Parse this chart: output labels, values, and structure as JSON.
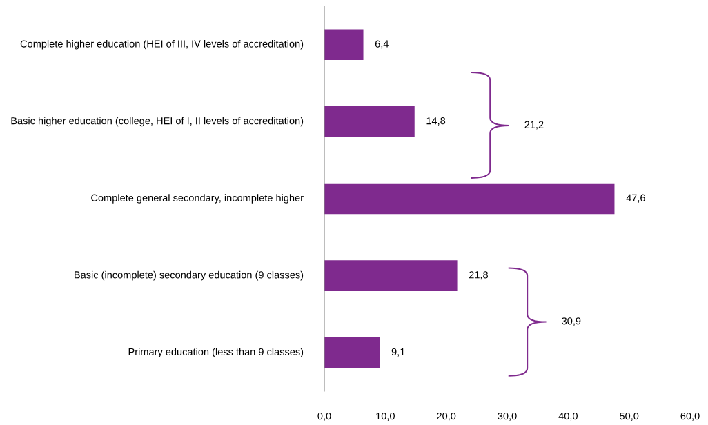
{
  "chart_data": {
    "type": "bar",
    "orientation": "horizontal",
    "categories": [
      "Complete higher education (HEI of III, IV levels of accreditation)",
      "Basic higher education (college, HEI of I, II levels of accreditation)",
      "Complete general secondary, incomplete higher",
      "Basic (incomplete) secondary education (9 classes)",
      "Primary education (less than 9 classes)"
    ],
    "values": [
      6.4,
      14.8,
      47.6,
      21.8,
      9.1
    ],
    "value_labels": [
      "6,4",
      "14,8",
      "47,6",
      "21,8",
      "9,1"
    ],
    "color": "#7f2a8e",
    "xlim": [
      0,
      60
    ],
    "xticks": [
      {
        "value": 0,
        "label": "0,0"
      },
      {
        "value": 10,
        "label": "10,0"
      },
      {
        "value": 20,
        "label": "20,0"
      },
      {
        "value": 30,
        "label": "30,0"
      },
      {
        "value": 40,
        "label": "40,0"
      },
      {
        "value": 50,
        "label": "50,0"
      },
      {
        "value": 60,
        "label": "60,0"
      }
    ],
    "annotations": [
      "21,2",
      "30,9"
    ],
    "grid": false,
    "legend": false
  }
}
